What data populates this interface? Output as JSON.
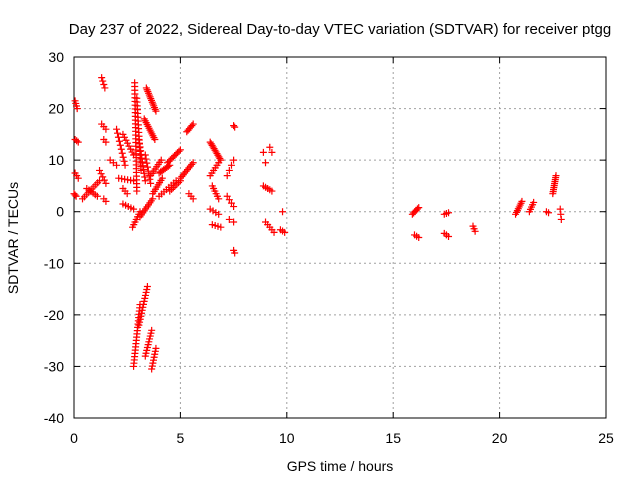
{
  "chart_data": {
    "type": "scatter",
    "title": "Day 237 of 2022, Sidereal Day-to-day VTEC variation (SDTVAR) for receiver ptgg",
    "xlabel": "GPS time / hours",
    "ylabel": "SDTVAR / TECUs",
    "xlim": [
      0,
      25
    ],
    "ylim": [
      -40,
      30
    ],
    "xticks": [
      0,
      5,
      10,
      15,
      20,
      25
    ],
    "yticks": [
      -40,
      -30,
      -20,
      -10,
      0,
      10,
      20,
      30
    ],
    "xtick_labels": [
      "0",
      "5",
      "10",
      "15",
      "20",
      "25"
    ],
    "ytick_labels": [
      "-40",
      "-30",
      "-20",
      "-10",
      "0",
      "10",
      "20",
      "30"
    ],
    "grid": true,
    "marker": "+",
    "color": "#ff0000",
    "segments": [
      {
        "x": [
          0.05,
          0.15
        ],
        "y": [
          21.5,
          20.0
        ],
        "n": 4
      },
      {
        "x": [
          0.05,
          0.2
        ],
        "y": [
          14.0,
          13.5
        ],
        "n": 3
      },
      {
        "x": [
          0.05,
          0.2
        ],
        "y": [
          7.5,
          6.5
        ],
        "n": 3
      },
      {
        "x": [
          0.0,
          0.1
        ],
        "y": [
          3.5,
          3.0
        ],
        "n": 3
      },
      {
        "x": [
          0.4,
          1.2
        ],
        "y": [
          2.5,
          6.0
        ],
        "n": 10
      },
      {
        "x": [
          0.6,
          1.1
        ],
        "y": [
          4.5,
          3.0
        ],
        "n": 6
      },
      {
        "x": [
          1.3,
          1.45
        ],
        "y": [
          26.0,
          24.0
        ],
        "n": 4
      },
      {
        "x": [
          1.3,
          1.5
        ],
        "y": [
          17.0,
          16.0
        ],
        "n": 3
      },
      {
        "x": [
          1.4,
          1.5
        ],
        "y": [
          14.0,
          13.5
        ],
        "n": 2
      },
      {
        "x": [
          1.2,
          1.5
        ],
        "y": [
          8.0,
          5.5
        ],
        "n": 5
      },
      {
        "x": [
          1.4,
          1.5
        ],
        "y": [
          2.5,
          2.0
        ],
        "n": 2
      },
      {
        "x": [
          1.7,
          2.0
        ],
        "y": [
          10.0,
          9.0
        ],
        "n": 3
      },
      {
        "x": [
          2.0,
          2.4
        ],
        "y": [
          16.0,
          9.0
        ],
        "n": 10
      },
      {
        "x": [
          2.3,
          2.8
        ],
        "y": [
          15.0,
          11.0
        ],
        "n": 8
      },
      {
        "x": [
          2.1,
          2.8
        ],
        "y": [
          6.5,
          6.0
        ],
        "n": 6
      },
      {
        "x": [
          2.3,
          2.5
        ],
        "y": [
          4.5,
          3.5
        ],
        "n": 3
      },
      {
        "x": [
          2.3,
          2.8
        ],
        "y": [
          1.5,
          0.5
        ],
        "n": 5
      },
      {
        "x": [
          2.85,
          2.95
        ],
        "y": [
          25.0,
          4.0
        ],
        "n": 30
      },
      {
        "x": [
          2.95,
          3.15
        ],
        "y": [
          22.0,
          8.0
        ],
        "n": 20
      },
      {
        "x": [
          3.05,
          3.35
        ],
        "y": [
          14.0,
          6.0
        ],
        "n": 12
      },
      {
        "x": [
          3.35,
          3.6
        ],
        "y": [
          11.0,
          5.5
        ],
        "n": 8
      },
      {
        "x": [
          2.75,
          3.1
        ],
        "y": [
          -3.0,
          0.0
        ],
        "n": 7
      },
      {
        "x": [
          3.1,
          3.7
        ],
        "y": [
          -1.0,
          2.5
        ],
        "n": 10
      },
      {
        "x": [
          2.8,
          3.1
        ],
        "y": [
          -30.0,
          -18.0
        ],
        "n": 20
      },
      {
        "x": [
          3.05,
          3.45
        ],
        "y": [
          -22.0,
          -14.5
        ],
        "n": 14
      },
      {
        "x": [
          3.35,
          3.65
        ],
        "y": [
          -28.0,
          -23.0
        ],
        "n": 10
      },
      {
        "x": [
          3.65,
          3.85
        ],
        "y": [
          -30.5,
          -26.5
        ],
        "n": 8
      },
      {
        "x": [
          3.4,
          3.85
        ],
        "y": [
          24.0,
          19.5
        ],
        "n": 14
      },
      {
        "x": [
          3.3,
          3.8
        ],
        "y": [
          18.0,
          14.0
        ],
        "n": 12
      },
      {
        "x": [
          3.7,
          4.15
        ],
        "y": [
          3.5,
          6.5
        ],
        "n": 8
      },
      {
        "x": [
          3.6,
          4.1
        ],
        "y": [
          7.0,
          10.0
        ],
        "n": 8
      },
      {
        "x": [
          4.0,
          4.5
        ],
        "y": [
          7.5,
          9.0
        ],
        "n": 8
      },
      {
        "x": [
          4.4,
          5.0
        ],
        "y": [
          9.5,
          12.0
        ],
        "n": 10
      },
      {
        "x": [
          4.5,
          5.0
        ],
        "y": [
          4.0,
          6.0
        ],
        "n": 7
      },
      {
        "x": [
          4.0,
          4.8
        ],
        "y": [
          3.0,
          6.0
        ],
        "n": 8
      },
      {
        "x": [
          5.0,
          5.6
        ],
        "y": [
          6.5,
          9.5
        ],
        "n": 10
      },
      {
        "x": [
          5.3,
          5.6
        ],
        "y": [
          15.5,
          17.0
        ],
        "n": 6
      },
      {
        "x": [
          5.4,
          5.6
        ],
        "y": [
          3.5,
          2.5
        ],
        "n": 3
      },
      {
        "x": [
          6.4,
          6.9
        ],
        "y": [
          13.5,
          10.0
        ],
        "n": 12
      },
      {
        "x": [
          6.4,
          6.8
        ],
        "y": [
          7.0,
          9.5
        ],
        "n": 6
      },
      {
        "x": [
          6.5,
          6.8
        ],
        "y": [
          5.0,
          2.5
        ],
        "n": 6
      },
      {
        "x": [
          6.4,
          6.8
        ],
        "y": [
          0.5,
          -0.5
        ],
        "n": 4
      },
      {
        "x": [
          6.5,
          6.9
        ],
        "y": [
          -2.5,
          -3.0
        ],
        "n": 4
      },
      {
        "x": [
          7.2,
          7.5
        ],
        "y": [
          7.0,
          10.0
        ],
        "n": 4
      },
      {
        "x": [
          7.2,
          7.5
        ],
        "y": [
          3.0,
          1.0
        ],
        "n": 4
      },
      {
        "x": [
          7.3,
          7.5
        ],
        "y": [
          -1.5,
          -2.0
        ],
        "n": 2
      },
      {
        "x": [
          7.5,
          7.55
        ],
        "y": [
          16.7,
          16.4
        ],
        "n": 2
      },
      {
        "x": [
          7.5,
          7.55
        ],
        "y": [
          -7.5,
          -8.0
        ],
        "n": 2
      },
      {
        "x": [
          8.9,
          9.0
        ],
        "y": [
          11.5,
          9.5
        ],
        "n": 2
      },
      {
        "x": [
          9.2,
          9.3
        ],
        "y": [
          12.5,
          11.5
        ],
        "n": 2
      },
      {
        "x": [
          8.9,
          9.3
        ],
        "y": [
          5.0,
          4.0
        ],
        "n": 5
      },
      {
        "x": [
          9.0,
          9.4
        ],
        "y": [
          -2.0,
          -4.0
        ],
        "n": 5
      },
      {
        "x": [
          9.8,
          9.8
        ],
        "y": [
          0.0,
          0.0
        ],
        "n": 1
      },
      {
        "x": [
          9.7,
          9.9
        ],
        "y": [
          -3.5,
          -4.0
        ],
        "n": 3
      },
      {
        "x": [
          15.9,
          16.2
        ],
        "y": [
          -0.5,
          0.8
        ],
        "n": 6
      },
      {
        "x": [
          16.0,
          16.2
        ],
        "y": [
          -4.5,
          -5.0
        ],
        "n": 3
      },
      {
        "x": [
          17.4,
          17.6
        ],
        "y": [
          -0.5,
          -0.2
        ],
        "n": 3
      },
      {
        "x": [
          17.4,
          17.6
        ],
        "y": [
          -4.2,
          -4.8
        ],
        "n": 3
      },
      {
        "x": [
          18.75,
          18.85
        ],
        "y": [
          -2.8,
          -3.8
        ],
        "n": 3
      },
      {
        "x": [
          20.75,
          21.05
        ],
        "y": [
          -0.5,
          2.0
        ],
        "n": 8
      },
      {
        "x": [
          21.4,
          21.6
        ],
        "y": [
          0.0,
          1.8
        ],
        "n": 5
      },
      {
        "x": [
          22.2,
          22.3
        ],
        "y": [
          0.0,
          -0.2
        ],
        "n": 2
      },
      {
        "x": [
          22.5,
          22.65
        ],
        "y": [
          3.5,
          7.0
        ],
        "n": 10
      },
      {
        "x": [
          22.85,
          22.9
        ],
        "y": [
          0.5,
          -1.5
        ],
        "n": 3
      }
    ]
  }
}
